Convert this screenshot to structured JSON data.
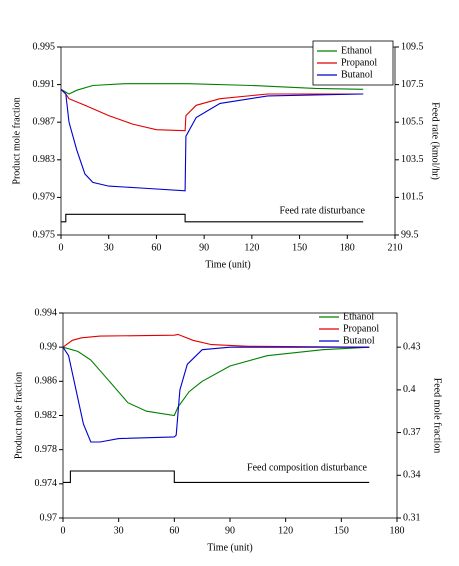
{
  "chart_data": [
    {
      "type": "line",
      "xlabel": "Time (unit)",
      "ylabel": "Product mole fraction",
      "y2label": "Feed rate (kmol/hr)",
      "xlim": [
        0,
        210
      ],
      "xticks": [
        0,
        30,
        60,
        90,
        120,
        150,
        180,
        210
      ],
      "ylim": [
        0.975,
        0.995
      ],
      "yticks": [
        0.975,
        0.979,
        0.983,
        0.987,
        0.991,
        0.995
      ],
      "y2lim": [
        99.5,
        109.5
      ],
      "y2ticks": [
        99.5,
        101.5,
        103.5,
        105.5,
        107.5,
        109.5
      ],
      "legend": "upper right",
      "legend_frame": true,
      "series": [
        {
          "name": "Ethanol",
          "color": "#008000",
          "x": [
            0,
            5,
            10,
            20,
            40,
            80,
            120,
            160,
            190
          ],
          "values": [
            0.9905,
            0.99,
            0.9904,
            0.9909,
            0.9911,
            0.9911,
            0.9909,
            0.9906,
            0.9905
          ]
        },
        {
          "name": "Propanol",
          "color": "#e00000",
          "x": [
            0,
            3,
            5,
            15,
            30,
            45,
            60,
            78,
            78.5,
            85,
            100,
            130,
            190
          ],
          "values": [
            0.9905,
            0.99,
            0.9895,
            0.9888,
            0.9877,
            0.9868,
            0.9862,
            0.9861,
            0.9877,
            0.9888,
            0.9895,
            0.99,
            0.99
          ]
        },
        {
          "name": "Butanol",
          "color": "#0000d0",
          "x": [
            0,
            3,
            5,
            10,
            15,
            20,
            30,
            50,
            78,
            78.5,
            85,
            100,
            130,
            190
          ],
          "values": [
            0.9905,
            0.99,
            0.987,
            0.984,
            0.9815,
            0.9806,
            0.9802,
            0.98,
            0.9797,
            0.9855,
            0.9875,
            0.989,
            0.9898,
            0.99
          ]
        }
      ],
      "disturbance": {
        "label": "Feed rate disturbance",
        "color": "#000000",
        "axis": "y2",
        "x": [
          0,
          3,
          3,
          78,
          78,
          190
        ],
        "values": [
          100.2,
          100.2,
          100.6,
          100.6,
          100.2,
          100.2
        ]
      }
    },
    {
      "type": "line",
      "xlabel": "Time (unit)",
      "ylabel": "Product mole fraction",
      "y2label": "Feed mole fraction",
      "xlim": [
        0,
        180
      ],
      "xticks": [
        0,
        30,
        60,
        90,
        120,
        150,
        180
      ],
      "ylim": [
        0.97,
        0.994
      ],
      "yticks": [
        0.97,
        0.974,
        0.978,
        0.982,
        0.986,
        0.99,
        0.994
      ],
      "y2lim": [
        0.31,
        0.454
      ],
      "y2ticks": [
        0.31,
        0.34,
        0.37,
        0.4,
        0.43
      ],
      "legend": "upper right",
      "legend_frame": false,
      "series": [
        {
          "name": "Ethanol",
          "color": "#008000",
          "x": [
            0,
            8,
            15,
            25,
            35,
            45,
            60,
            62,
            68,
            75,
            90,
            110,
            140,
            165
          ],
          "values": [
            0.99,
            0.9895,
            0.9885,
            0.986,
            0.9835,
            0.9825,
            0.982,
            0.983,
            0.9848,
            0.986,
            0.9878,
            0.989,
            0.9897,
            0.99
          ]
        },
        {
          "name": "Propanol",
          "color": "#e00000",
          "x": [
            0,
            5,
            10,
            20,
            60,
            62,
            70,
            80,
            100,
            165
          ],
          "values": [
            0.99,
            0.9908,
            0.9911,
            0.9913,
            0.9914,
            0.9915,
            0.9908,
            0.9903,
            0.9901,
            0.99
          ]
        },
        {
          "name": "Butanol",
          "color": "#0000d0",
          "x": [
            0,
            3,
            7,
            11,
            15,
            20,
            30,
            60,
            61,
            63,
            67,
            75,
            90,
            165
          ],
          "values": [
            0.99,
            0.989,
            0.985,
            0.981,
            0.9789,
            0.9789,
            0.9793,
            0.9795,
            0.9797,
            0.985,
            0.988,
            0.9897,
            0.99,
            0.99
          ]
        }
      ],
      "disturbance": {
        "label": "Feed composition disturbance",
        "color": "#000000",
        "axis": "y2",
        "x": [
          0,
          4,
          4,
          60,
          60,
          165
        ],
        "values": [
          0.335,
          0.335,
          0.343,
          0.343,
          0.335,
          0.335
        ]
      }
    }
  ]
}
